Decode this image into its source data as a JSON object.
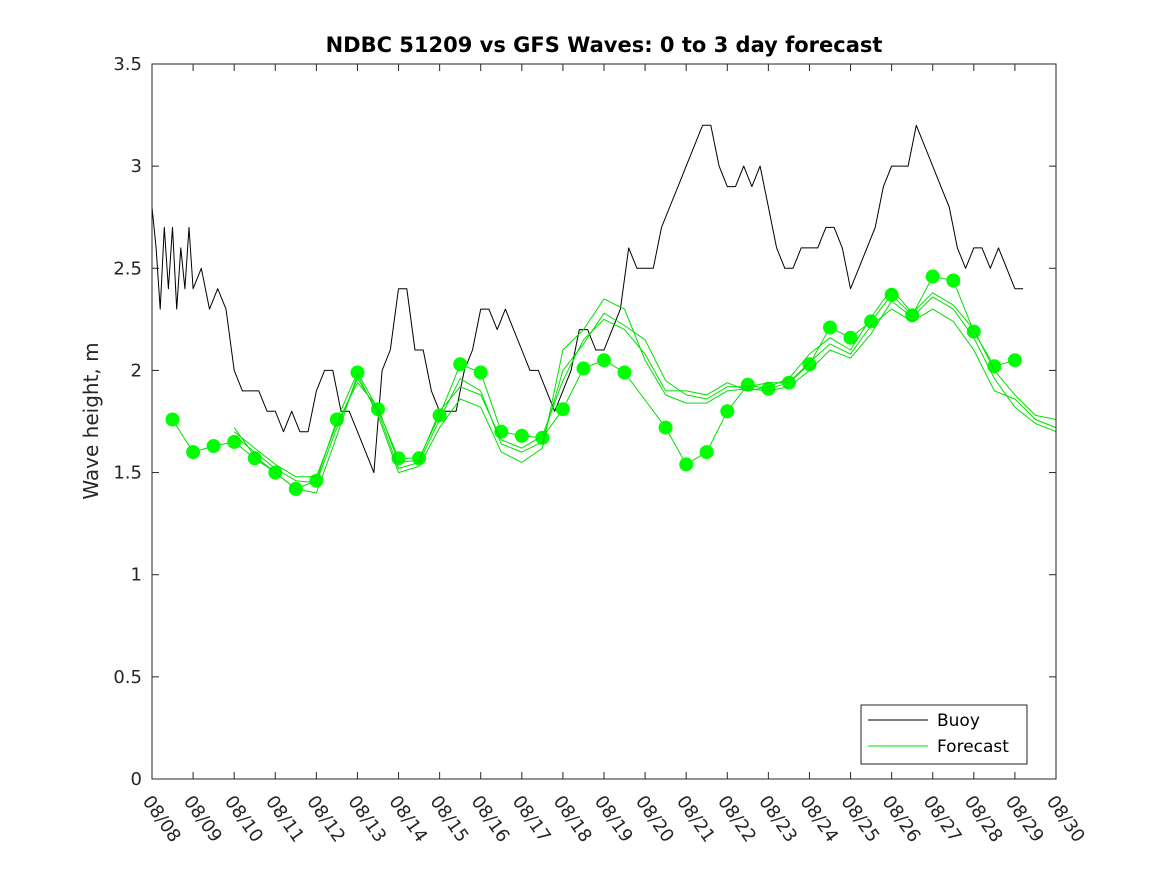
{
  "chart_data": {
    "type": "line",
    "title": "NDBC 51209 vs GFS Waves: 0 to 3 day forecast",
    "xlabel": "",
    "ylabel": "Wave height, m",
    "x_start_day": 0,
    "x_end_day": 22,
    "xlim": [
      0,
      22
    ],
    "ylim": [
      0,
      3.5
    ],
    "y_ticks": [
      0,
      0.5,
      1,
      1.5,
      2,
      2.5,
      3,
      3.5
    ],
    "y_tick_labels": [
      "0",
      "0.5",
      "1",
      "1.5",
      "2",
      "2.5",
      "3",
      "3.5"
    ],
    "x_ticks": [
      0,
      1,
      2,
      3,
      4,
      5,
      6,
      7,
      8,
      9,
      10,
      11,
      12,
      13,
      14,
      15,
      16,
      17,
      18,
      19,
      20,
      21,
      22
    ],
    "x_tick_labels": [
      "08/08",
      "08/09",
      "08/10",
      "08/11",
      "08/12",
      "08/13",
      "08/14",
      "08/15",
      "08/16",
      "08/17",
      "08/18",
      "08/19",
      "08/20",
      "08/21",
      "08/22",
      "08/23",
      "08/24",
      "08/25",
      "08/26",
      "08/27",
      "08/28",
      "08/29",
      "08/30"
    ],
    "legend": {
      "position": "bottom-right",
      "entries": [
        {
          "label": "Buoy",
          "color": "#000000"
        },
        {
          "label": "Forecast",
          "color": "#00e000"
        }
      ]
    },
    "colors": {
      "buoy": "#000000",
      "forecast": "#00e000",
      "marker": "#00ff00"
    },
    "series": [
      {
        "name": "Buoy",
        "note": "hourly-ish observed significant wave height (approximate)",
        "x": [
          0.0,
          0.1,
          0.2,
          0.3,
          0.4,
          0.5,
          0.6,
          0.7,
          0.8,
          0.9,
          1.0,
          1.2,
          1.4,
          1.6,
          1.8,
          2.0,
          2.2,
          2.4,
          2.6,
          2.8,
          3.0,
          3.2,
          3.4,
          3.6,
          3.8,
          4.0,
          4.2,
          4.4,
          4.6,
          4.8,
          5.0,
          5.2,
          5.4,
          5.6,
          5.8,
          6.0,
          6.2,
          6.4,
          6.6,
          6.8,
          7.0,
          7.2,
          7.4,
          7.6,
          7.8,
          8.0,
          8.2,
          8.4,
          8.6,
          8.8,
          9.0,
          9.2,
          9.4,
          9.6,
          9.8,
          10.0,
          10.2,
          10.4,
          10.6,
          10.8,
          11.0,
          11.2,
          11.4,
          11.6,
          11.8,
          12.0,
          12.2,
          12.4,
          12.6,
          12.8,
          13.0,
          13.2,
          13.4,
          13.6,
          13.8,
          14.0,
          14.2,
          14.4,
          14.6,
          14.8,
          15.0,
          15.2,
          15.4,
          15.6,
          15.8,
          16.0,
          16.2,
          16.4,
          16.6,
          16.8,
          17.0,
          17.2,
          17.4,
          17.6,
          17.8,
          18.0,
          18.2,
          18.4,
          18.6,
          18.8,
          19.0,
          19.2,
          19.4,
          19.6,
          19.8,
          20.0,
          20.2,
          20.4,
          20.6,
          20.8,
          21.0,
          21.2
        ],
        "values": [
          2.8,
          2.6,
          2.3,
          2.7,
          2.4,
          2.7,
          2.3,
          2.6,
          2.4,
          2.7,
          2.4,
          2.5,
          2.3,
          2.4,
          2.3,
          2.0,
          1.9,
          1.9,
          1.9,
          1.8,
          1.8,
          1.7,
          1.8,
          1.7,
          1.7,
          1.9,
          2.0,
          2.0,
          1.8,
          1.8,
          1.7,
          1.6,
          1.5,
          2.0,
          2.1,
          2.4,
          2.4,
          2.1,
          2.1,
          1.9,
          1.8,
          1.8,
          1.8,
          2.0,
          2.1,
          2.3,
          2.3,
          2.2,
          2.3,
          2.2,
          2.1,
          2.0,
          2.0,
          1.9,
          1.8,
          1.9,
          2.0,
          2.2,
          2.2,
          2.1,
          2.1,
          2.2,
          2.3,
          2.6,
          2.5,
          2.5,
          2.5,
          2.7,
          2.8,
          2.9,
          3.0,
          3.1,
          3.2,
          3.2,
          3.0,
          2.9,
          2.9,
          3.0,
          2.9,
          3.0,
          2.8,
          2.6,
          2.5,
          2.5,
          2.6,
          2.6,
          2.6,
          2.7,
          2.7,
          2.6,
          2.4,
          2.5,
          2.6,
          2.7,
          2.9,
          3.0,
          3.0,
          3.0,
          3.2,
          3.1,
          3.0,
          2.9,
          2.8,
          2.6,
          2.5,
          2.6,
          2.6,
          2.5,
          2.6,
          2.5,
          2.4,
          2.4
        ]
      },
      {
        "name": "Forecast",
        "note": "analysis / 0-day forecast markers every 12 h",
        "x": [
          0.5,
          1.0,
          1.5,
          2.0,
          2.5,
          3.0,
          3.5,
          4.0,
          4.5,
          5.0,
          5.5,
          6.0,
          6.5,
          7.0,
          7.5,
          8.0,
          8.5,
          9.0,
          9.5,
          10.0,
          10.5,
          11.0,
          11.5,
          12.5,
          13.0,
          13.5,
          14.0,
          14.5,
          15.0,
          15.5,
          16.0,
          16.5,
          17.0,
          17.5,
          18.0,
          18.5,
          19.0,
          19.5,
          20.0,
          20.5,
          21.0
        ],
        "values": [
          1.76,
          1.6,
          1.63,
          1.65,
          1.57,
          1.5,
          1.42,
          1.46,
          1.76,
          1.99,
          1.81,
          1.57,
          1.57,
          1.78,
          2.03,
          1.99,
          1.7,
          1.68,
          1.67,
          1.81,
          2.01,
          2.05,
          1.99,
          1.72,
          1.54,
          1.6,
          1.8,
          1.93,
          1.91,
          1.94,
          2.03,
          2.21,
          2.16,
          2.24,
          2.37,
          2.27,
          2.46,
          2.44,
          2.19,
          2.02,
          2.05
        ]
      },
      {
        "name": "Forecast",
        "note": "forecast line (1-day lead, approximate)",
        "x": [
          2.0,
          2.5,
          3.0,
          3.5,
          4.0,
          4.5,
          5.0,
          5.5,
          6.0,
          6.5,
          7.0,
          7.5,
          8.0,
          8.5,
          9.0,
          9.5,
          10.0,
          10.5,
          11.0,
          11.5,
          12.0,
          12.5,
          13.0,
          13.5,
          14.0,
          14.5,
          15.0,
          15.5,
          16.0,
          16.5,
          17.0,
          17.5,
          18.0,
          18.5,
          19.0,
          19.5,
          20.0,
          20.5,
          21.0,
          21.5,
          22.0
        ],
        "values": [
          1.68,
          1.6,
          1.52,
          1.46,
          1.45,
          1.72,
          1.96,
          1.8,
          1.52,
          1.55,
          1.76,
          1.96,
          1.9,
          1.64,
          1.6,
          1.65,
          2.0,
          2.13,
          2.28,
          2.22,
          2.15,
          1.95,
          1.88,
          1.86,
          1.92,
          1.92,
          1.94,
          1.94,
          2.04,
          2.13,
          2.08,
          2.22,
          2.3,
          2.24,
          2.3,
          2.24,
          2.1,
          1.9,
          1.86,
          1.76,
          1.72
        ]
      },
      {
        "name": "Forecast",
        "note": "forecast line (2-day lead, approximate)",
        "x": [
          2.0,
          2.5,
          3.0,
          3.5,
          4.0,
          4.5,
          5.0,
          5.5,
          6.0,
          6.5,
          7.0,
          7.5,
          8.0,
          8.5,
          9.0,
          9.5,
          10.0,
          10.5,
          11.0,
          11.5,
          12.0,
          12.5,
          13.0,
          13.5,
          14.0,
          14.5,
          15.0,
          15.5,
          16.0,
          16.5,
          17.0,
          17.5,
          18.0,
          18.5,
          19.0,
          19.5,
          20.0,
          20.5,
          21.0,
          21.5,
          22.0
        ],
        "values": [
          1.72,
          1.58,
          1.5,
          1.42,
          1.4,
          1.68,
          1.98,
          1.78,
          1.5,
          1.53,
          1.72,
          1.86,
          1.82,
          1.6,
          1.55,
          1.62,
          2.1,
          2.2,
          2.35,
          2.3,
          2.05,
          1.88,
          1.84,
          1.84,
          1.9,
          1.91,
          1.9,
          1.92,
          2.0,
          2.1,
          2.06,
          2.18,
          2.34,
          2.26,
          2.36,
          2.3,
          2.16,
          1.96,
          1.82,
          1.74,
          1.7
        ]
      },
      {
        "name": "Forecast",
        "note": "forecast line (3-day lead, approximate)",
        "x": [
          2.0,
          2.5,
          3.0,
          3.5,
          4.0,
          4.5,
          5.0,
          5.5,
          6.0,
          6.5,
          7.0,
          7.5,
          8.0,
          8.5,
          9.0,
          9.5,
          10.0,
          10.5,
          11.0,
          11.5,
          12.0,
          12.5,
          13.0,
          13.5,
          14.0,
          14.5,
          15.0,
          15.5,
          16.0,
          16.5,
          17.0,
          17.5,
          18.0,
          18.5,
          19.0,
          19.5,
          20.0,
          20.5,
          21.0,
          21.5,
          22.0
        ],
        "values": [
          1.7,
          1.62,
          1.54,
          1.48,
          1.48,
          1.74,
          1.94,
          1.82,
          1.55,
          1.56,
          1.8,
          1.92,
          1.88,
          1.66,
          1.62,
          1.68,
          1.95,
          2.15,
          2.25,
          2.2,
          2.08,
          1.9,
          1.9,
          1.88,
          1.94,
          1.9,
          1.92,
          1.96,
          2.08,
          2.16,
          2.1,
          2.26,
          2.4,
          2.28,
          2.38,
          2.32,
          2.2,
          2.0,
          1.88,
          1.78,
          1.76
        ]
      }
    ]
  }
}
